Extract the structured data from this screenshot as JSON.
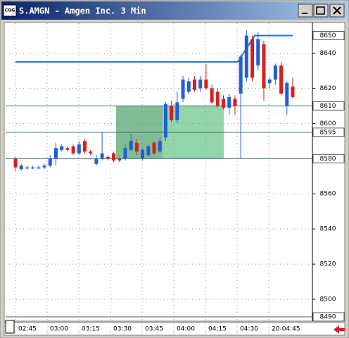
{
  "window": {
    "icon": "CQG",
    "title": "S.AMGN - Amgen Inc. 3 Min"
  },
  "chart_data": {
    "type": "candlestick",
    "open": [
      8580,
      8574,
      8575,
      8575,
      8575,
      8575,
      8576,
      8580,
      8585,
      8586,
      8587,
      8583,
      8590,
      8584,
      8577,
      8580,
      8581,
      8583,
      8580,
      8580,
      8585,
      8589,
      8580,
      8582,
      8589,
      8584,
      8592,
      8610,
      8602,
      8614,
      8618,
      8625,
      8620,
      8625,
      8620,
      8618,
      8614,
      8609,
      8614,
      8617,
      8626,
      8648,
      8633,
      8645,
      8623,
      8625,
      8633,
      8610,
      8621
    ],
    "high": [
      8581,
      8577,
      8576,
      8576,
      8576,
      8577,
      8582,
      8589,
      8588,
      8587,
      8588,
      8590,
      8591,
      8585,
      8582,
      8595,
      8582,
      8584,
      8581,
      8588,
      8594,
      8591,
      8586,
      8588,
      8590,
      8592,
      8612,
      8613,
      8618,
      8627,
      8626,
      8627,
      8627,
      8634,
      8622,
      8620,
      8616,
      8617,
      8616,
      8639,
      8653,
      8650,
      8652,
      8647,
      8626,
      8634,
      8635,
      8624,
      8626
    ],
    "low": [
      8573,
      8573,
      8574,
      8574,
      8574,
      8574,
      8575,
      8576,
      8584,
      8584,
      8582,
      8582,
      8583,
      8582,
      8576,
      8579,
      8579,
      8578,
      8578,
      8579,
      8584,
      8582,
      8579,
      8581,
      8582,
      8583,
      8590,
      8601,
      8600,
      8612,
      8617,
      8618,
      8618,
      8619,
      8611,
      8609,
      8608,
      8605,
      8605,
      8580,
      8624,
      8624,
      8630,
      8613,
      8620,
      8622,
      8616,
      8605,
      8614
    ],
    "close": [
      8575,
      8576,
      8575,
      8575,
      8575,
      8576,
      8580,
      8586,
      8587,
      8585,
      8583,
      8588,
      8584,
      8583,
      8580,
      8583,
      8580,
      8579,
      8579,
      8586,
      8590,
      8584,
      8585,
      8587,
      8583,
      8590,
      8611,
      8602,
      8612,
      8625,
      8624,
      8619,
      8625,
      8620,
      8612,
      8610,
      8609,
      8615,
      8610,
      8638,
      8650,
      8626,
      8648,
      8620,
      8625,
      8633,
      8617,
      8623,
      8615
    ],
    "up_color": "#1f5fd6",
    "down_color": "#d42020",
    "ylim": [
      8488,
      8657
    ],
    "yticks": [
      8640,
      8620,
      8600,
      8580,
      8560,
      8540,
      8520,
      8500
    ],
    "levels": [
      8650,
      8610,
      8595,
      8580,
      8490
    ],
    "trendline": [
      8635,
      8650
    ],
    "zone": [
      8580,
      8610
    ],
    "zone_color": "#3cb464",
    "xticks": [
      "02:45",
      "03:00",
      "03:15",
      "03:30",
      "03:45",
      "04:00",
      "04:15",
      "04:30",
      "20-04:45"
    ],
    "grid": true
  }
}
